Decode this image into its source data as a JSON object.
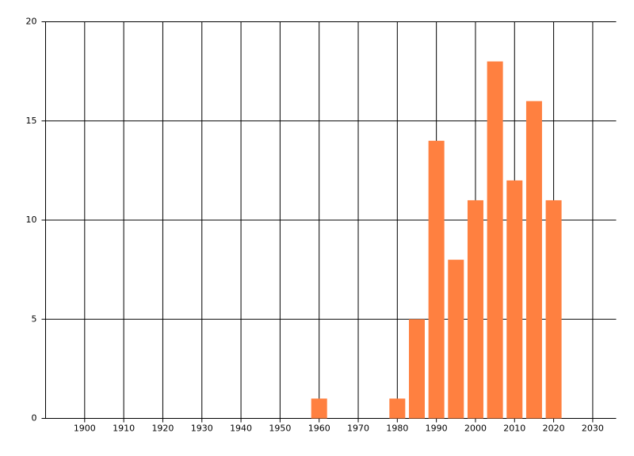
{
  "chart_data": {
    "type": "bar",
    "x": [
      1960,
      1980,
      1985,
      1990,
      1995,
      2000,
      2005,
      2010,
      2015,
      2020
    ],
    "values": [
      1,
      1,
      5,
      14,
      8,
      11,
      18,
      12,
      16,
      11
    ],
    "color": "#ff8040",
    "xlim": [
      1890,
      2036
    ],
    "xticks": [
      1900,
      1910,
      1920,
      1930,
      1940,
      1950,
      1960,
      1970,
      1980,
      1990,
      2000,
      2010,
      2020,
      2030
    ],
    "ylim": [
      0,
      20
    ],
    "yticks": [
      0,
      5,
      10,
      15,
      20
    ],
    "grid": true
  }
}
